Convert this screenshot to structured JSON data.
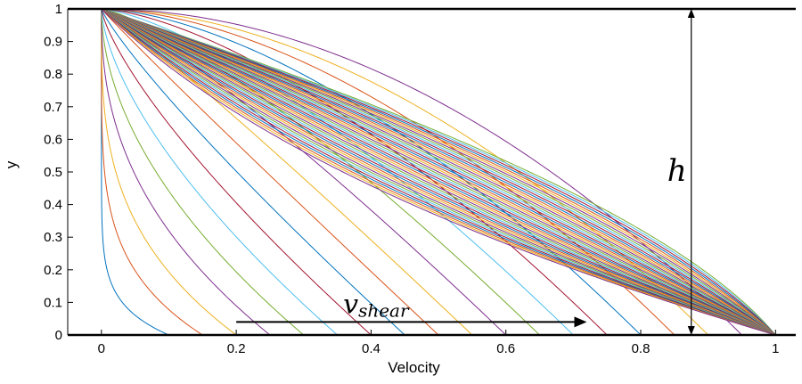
{
  "chart_data": {
    "type": "line",
    "xlabel": "Velocity",
    "ylabel": "y",
    "xlim": [
      -0.05,
      1.03
    ],
    "ylim": [
      0,
      1
    ],
    "x_ticks": [
      "0",
      "0.2",
      "0.4",
      "0.6",
      "0.8",
      "1"
    ],
    "y_ticks": [
      "0",
      "0.1",
      "0.2",
      "0.3",
      "0.4",
      "0.5",
      "0.6",
      "0.7",
      "0.8",
      "0.9",
      "1"
    ],
    "grid": false,
    "legend": "none",
    "plates": [
      {
        "y": 1,
        "x_range": [
          -0.05,
          1.03
        ]
      },
      {
        "y": 0,
        "x_range": [
          -0.05,
          1.03
        ]
      }
    ],
    "series_description_note": "",
    "series_count": 60,
    "series_model": {
      "endpoints": [
        {
          "velocity": 0,
          "y": 1
        },
        {
          "velocity": 1,
          "y": 0
        }
      ],
      "sample_series": [
        {
          "velocity_at_y0": 0.1,
          "velocity_at_y05": 0.0
        },
        {
          "velocity_at_y0": 0.2,
          "velocity_at_y05": 0.01
        },
        {
          "velocity_at_y0": 0.4,
          "velocity_at_y05": 0.05
        },
        {
          "velocity_at_y0": 0.6,
          "velocity_at_y05": 0.12
        },
        {
          "velocity_at_y0": 0.8,
          "velocity_at_y05": 0.22
        },
        {
          "velocity_at_y0": 1.0,
          "velocity_at_y05": 0.5
        },
        {
          "velocity_at_y0": 1.0,
          "velocity_at_y05": 0.63
        }
      ]
    },
    "palette": [
      "#0072bd",
      "#d95319",
      "#edb120",
      "#7e2f8e",
      "#77ac30",
      "#4dbeee",
      "#a2142f"
    ],
    "annotations": {
      "height_label": "h",
      "height_marker": {
        "velocity": 0.875,
        "y_from": 0,
        "y_to": 1
      },
      "shear_label_main": "v",
      "shear_label_sub": "shear",
      "shear_arrow": {
        "velocity_from": 0.2,
        "velocity_to": 0.72,
        "y": 0.04
      }
    }
  }
}
